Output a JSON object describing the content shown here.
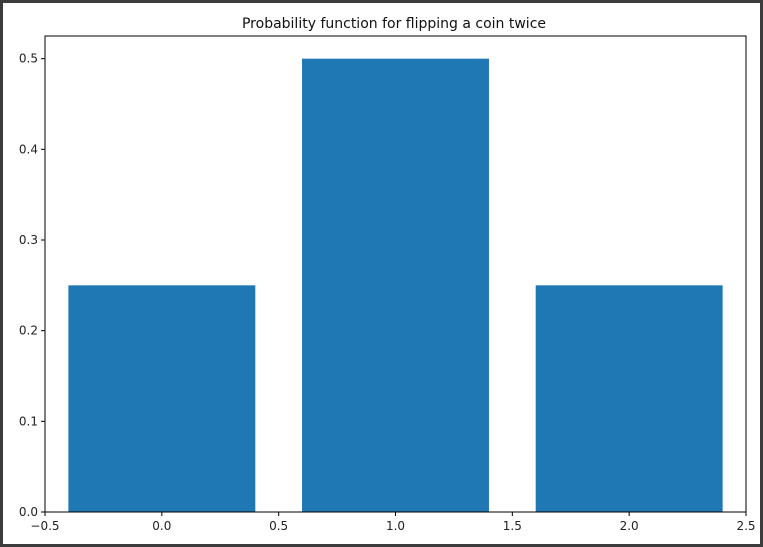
{
  "colors": {
    "frame": "#3c3c3c",
    "background": "#ffffff",
    "bar": "#1f77b4",
    "axis": "#000000",
    "text": "#222222"
  },
  "chart_data": {
    "type": "bar",
    "title": "Probability function for flipping a coin twice",
    "xlabel": "",
    "ylabel": "",
    "x": [
      0,
      1,
      2
    ],
    "values": [
      0.25,
      0.5,
      0.25
    ],
    "bar_width": 0.8,
    "xlim": [
      -0.5,
      2.5
    ],
    "ylim": [
      0,
      0.525
    ],
    "xticks": [
      -0.5,
      0.0,
      0.5,
      1.0,
      1.5,
      2.0,
      2.5
    ],
    "xtick_labels": [
      "−0.5",
      "0.0",
      "0.5",
      "1.0",
      "1.5",
      "2.0",
      "2.5"
    ],
    "yticks": [
      0.0,
      0.1,
      0.2,
      0.3,
      0.4,
      0.5
    ],
    "ytick_labels": [
      "0.0",
      "0.1",
      "0.2",
      "0.3",
      "0.4",
      "0.5"
    ],
    "grid": false,
    "legend": "none"
  }
}
